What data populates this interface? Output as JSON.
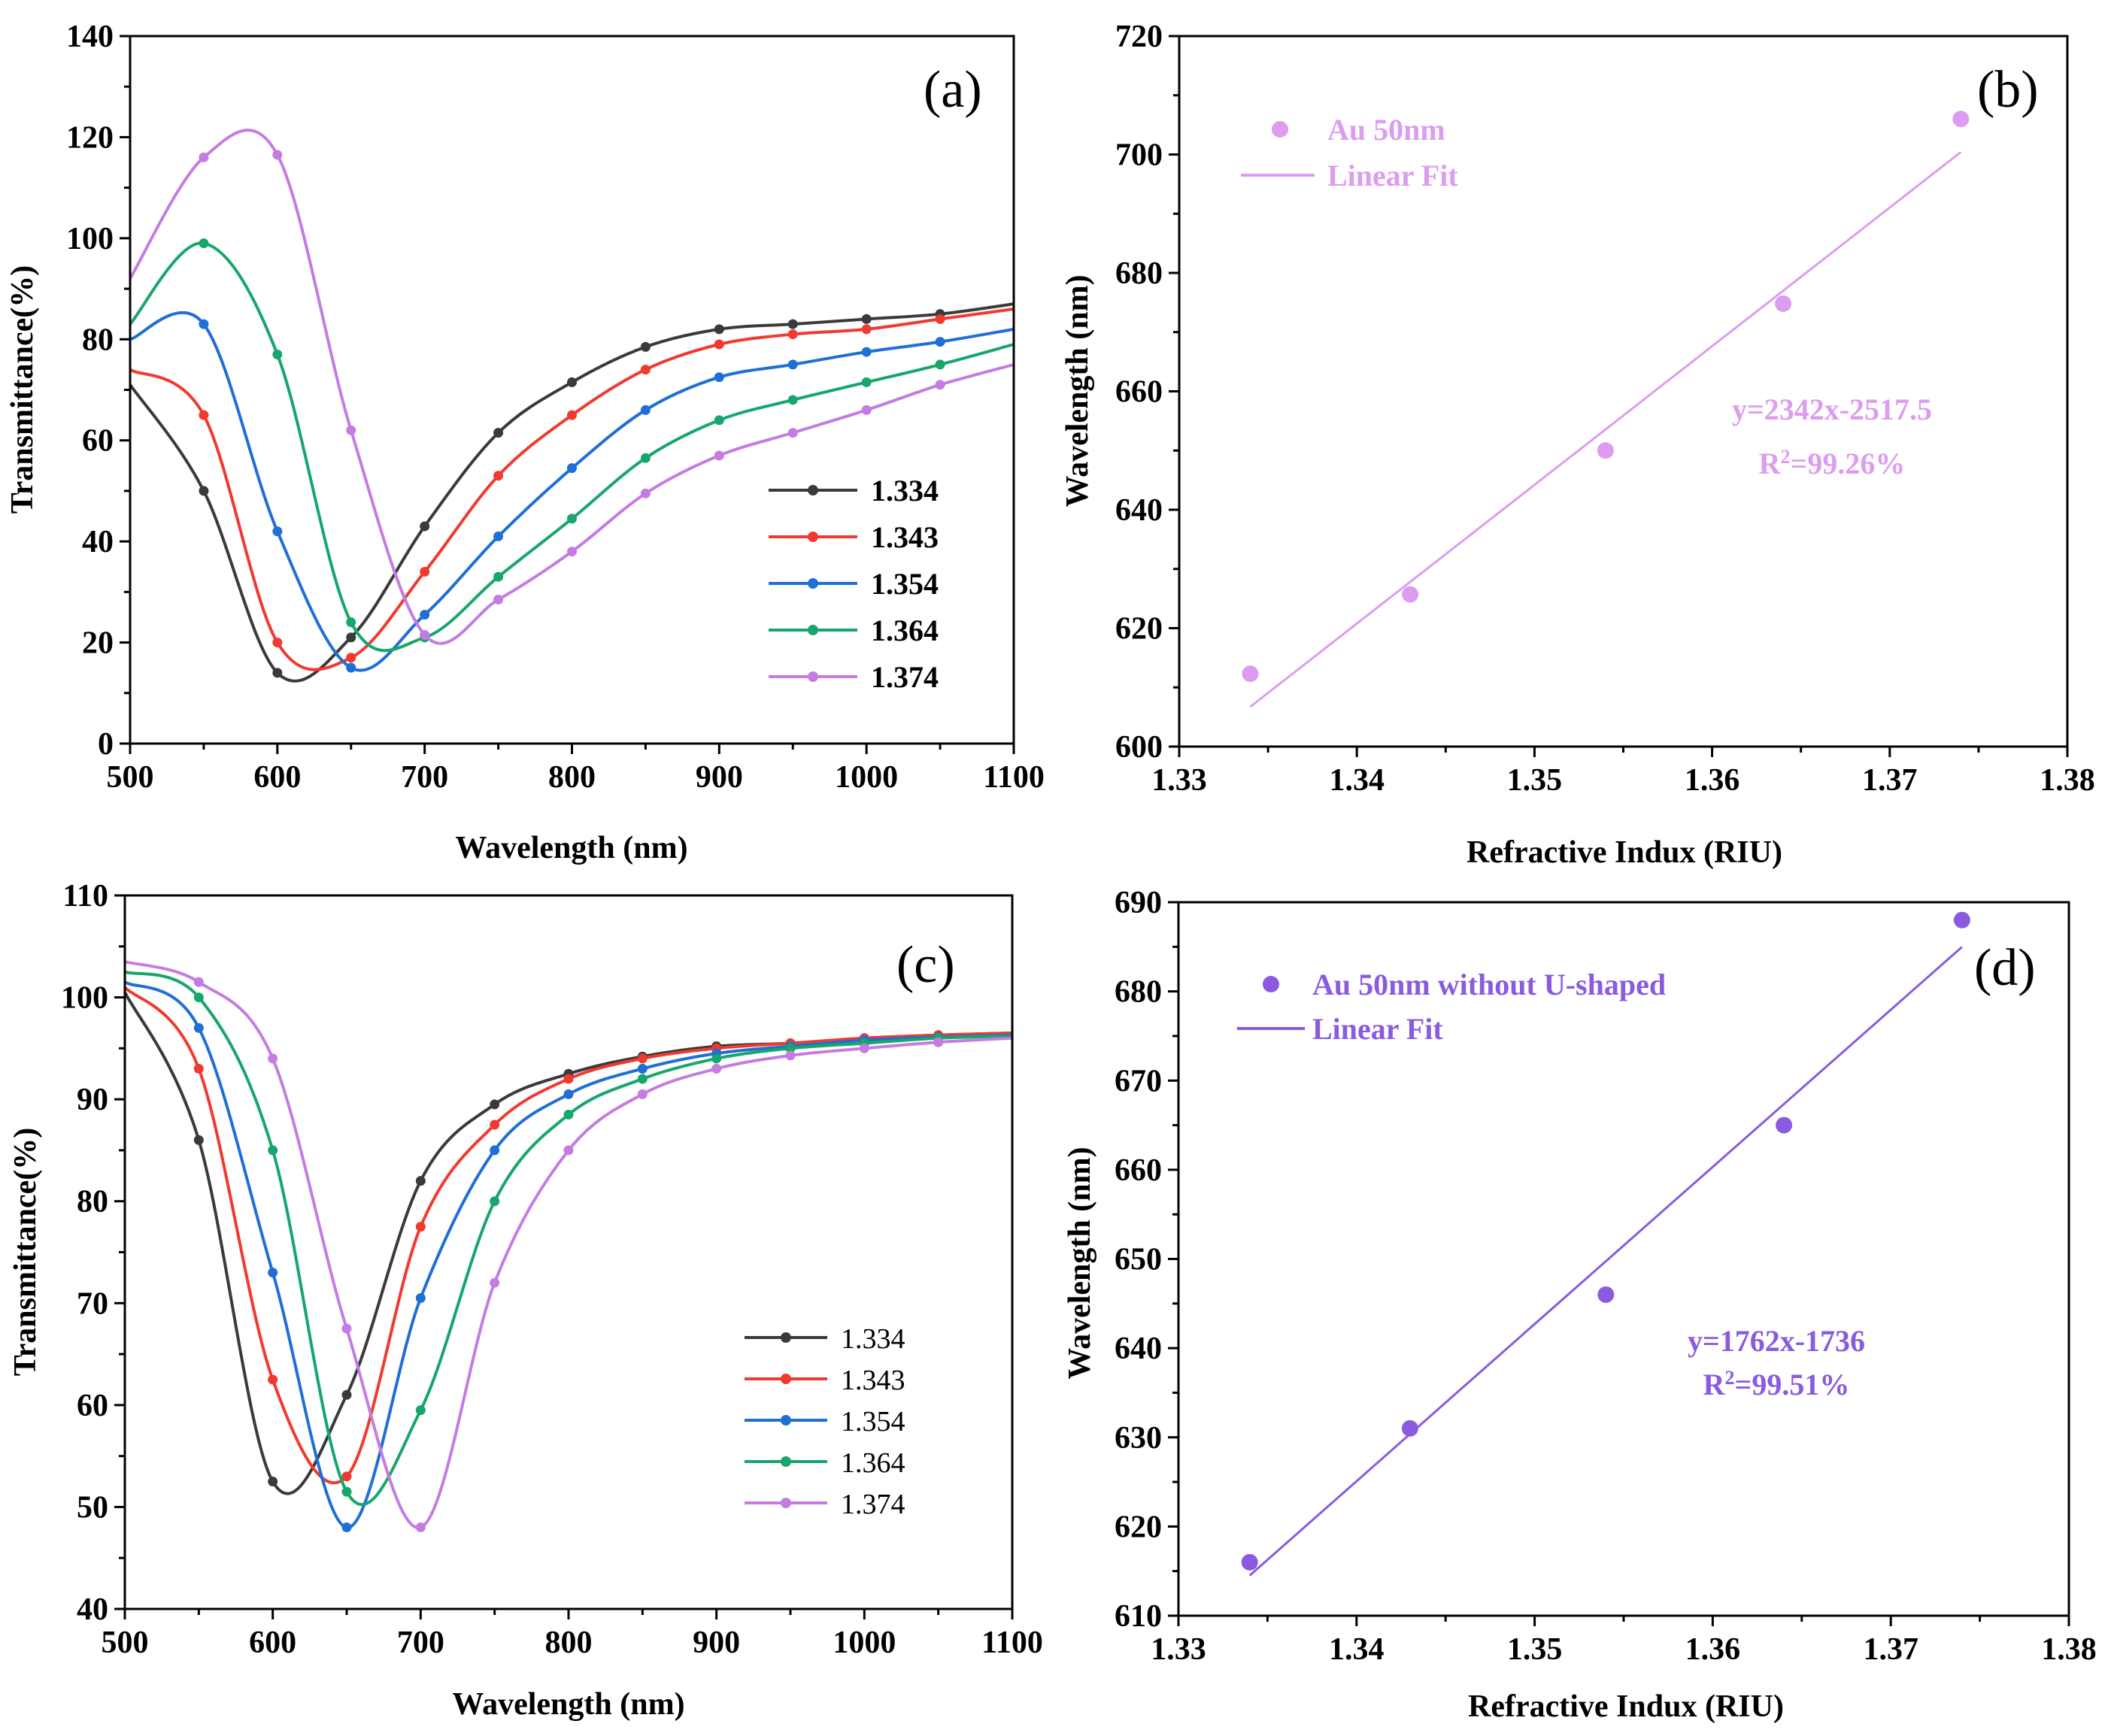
{
  "colors": {
    "s1334": "#3a3a3a",
    "s1343": "#f03a30",
    "s1354": "#1f6fd6",
    "s1364": "#17a66b",
    "s1374": "#c57ce2",
    "fitB": "#dc9df0",
    "fitD": "#8a5be0"
  },
  "chart_data": [
    {
      "id": "a",
      "type": "line",
      "panel_label": "(a)",
      "xlabel": "Wavelength (nm)",
      "ylabel": "Transmittance(%)",
      "xlim": [
        500,
        1100
      ],
      "ylim": [
        0,
        140
      ],
      "xticks": [
        500,
        600,
        700,
        800,
        900,
        1000,
        1100
      ],
      "yticks": [
        0,
        20,
        40,
        60,
        80,
        100,
        120,
        140
      ],
      "legend_position": "center-right",
      "x": [
        500,
        550,
        600,
        650,
        700,
        750,
        800,
        850,
        900,
        950,
        1000,
        1050,
        1100
      ],
      "series": [
        {
          "name": "1.334",
          "color_key": "s1334",
          "values": [
            71,
            50,
            14,
            21,
            43,
            61.5,
            71.5,
            78.5,
            82,
            83,
            84,
            85,
            87
          ]
        },
        {
          "name": "1.343",
          "color_key": "s1343",
          "values": [
            74,
            65,
            20,
            17,
            34,
            53,
            65,
            74,
            79,
            81,
            82,
            84,
            86
          ]
        },
        {
          "name": "1.354",
          "color_key": "s1354",
          "values": [
            80,
            83,
            42,
            15,
            25.5,
            41,
            54.5,
            66,
            72.5,
            75,
            77.5,
            79.5,
            82
          ]
        },
        {
          "name": "1.364",
          "color_key": "s1364",
          "values": [
            83,
            99,
            77,
            24,
            21,
            33,
            44.5,
            56.5,
            64,
            68,
            71.5,
            75,
            79
          ]
        },
        {
          "name": "1.374",
          "color_key": "s1374",
          "values": [
            92,
            116,
            116.5,
            62,
            21.5,
            28.5,
            38,
            49.5,
            57,
            61.5,
            66,
            71,
            75
          ]
        }
      ]
    },
    {
      "id": "b",
      "type": "scatter",
      "panel_label": "(b)",
      "xlabel": "Refractive Indux (RIU)",
      "ylabel": "Wavelength (nm)",
      "xlim": [
        1.33,
        1.38
      ],
      "ylim": [
        600,
        720
      ],
      "xticks": [
        1.33,
        1.34,
        1.35,
        1.36,
        1.37,
        1.38
      ],
      "yticks": [
        600,
        620,
        640,
        660,
        680,
        700,
        720
      ],
      "legend_position": "top-left",
      "legend": [
        "Au 50nm",
        "Linear Fit"
      ],
      "points": [
        [
          1.334,
          612.3
        ],
        [
          1.343,
          625.7
        ],
        [
          1.354,
          650
        ],
        [
          1.364,
          674.8
        ],
        [
          1.374,
          706
        ]
      ],
      "fit": {
        "slope": 2342,
        "intercept": -2517.5
      },
      "equation": "y=2342x-2517.5",
      "r2_prefix": "R",
      "r2_sup": "2",
      "r2_value": "=99.26%"
    },
    {
      "id": "c",
      "type": "line",
      "panel_label": "(c)",
      "xlabel": "Wavelength (nm)",
      "ylabel": "Transmittance(%)",
      "xlim": [
        500,
        1100
      ],
      "ylim": [
        40,
        110
      ],
      "xticks": [
        500,
        600,
        700,
        800,
        900,
        1000,
        1100
      ],
      "yticks": [
        40,
        50,
        60,
        70,
        80,
        90,
        100,
        110
      ],
      "legend_position": "bottom-center",
      "x": [
        500,
        550,
        600,
        650,
        700,
        750,
        800,
        850,
        900,
        950,
        1000,
        1050,
        1100
      ],
      "series": [
        {
          "name": "1.334",
          "color_key": "s1334",
          "values": [
            100.5,
            86,
            52.5,
            61,
            82,
            89.5,
            92.5,
            94.2,
            95.2,
            95.5,
            96,
            96.3,
            96.5
          ]
        },
        {
          "name": "1.343",
          "color_key": "s1343",
          "values": [
            101,
            93,
            62.5,
            53,
            77.5,
            87.5,
            92,
            94,
            95,
            95.5,
            96,
            96.3,
            96.5
          ]
        },
        {
          "name": "1.354",
          "color_key": "s1354",
          "values": [
            101.5,
            97,
            73,
            48,
            70.5,
            85,
            90.5,
            93,
            94.5,
            95.2,
            95.8,
            96.1,
            96.3
          ]
        },
        {
          "name": "1.364",
          "color_key": "s1364",
          "values": [
            102.5,
            100,
            85,
            51.5,
            59.5,
            80,
            88.5,
            92,
            94,
            95,
            95.5,
            96,
            96.2
          ]
        },
        {
          "name": "1.374",
          "color_key": "s1374",
          "values": [
            103.5,
            101.5,
            94,
            67.5,
            48,
            72,
            85,
            90.5,
            93,
            94.3,
            95,
            95.6,
            96
          ]
        }
      ]
    },
    {
      "id": "d",
      "type": "scatter",
      "panel_label": "(d)",
      "xlabel": "Refractive Indux (RIU)",
      "ylabel": "Wavelength (nm)",
      "xlim": [
        1.33,
        1.38
      ],
      "ylim": [
        610,
        690
      ],
      "xticks": [
        1.33,
        1.34,
        1.35,
        1.36,
        1.37,
        1.38
      ],
      "yticks": [
        610,
        620,
        630,
        640,
        650,
        660,
        670,
        680,
        690
      ],
      "legend_position": "top-left",
      "legend": [
        "Au 50nm without U-shaped",
        "Linear Fit"
      ],
      "points": [
        [
          1.334,
          616
        ],
        [
          1.343,
          631
        ],
        [
          1.354,
          646
        ],
        [
          1.364,
          665
        ],
        [
          1.374,
          688
        ]
      ],
      "fit": {
        "slope": 1762,
        "intercept": -1736
      },
      "equation": "y=1762x-1736",
      "r2_prefix": "R",
      "r2_sup": "2",
      "r2_value": "=99.51%"
    }
  ]
}
